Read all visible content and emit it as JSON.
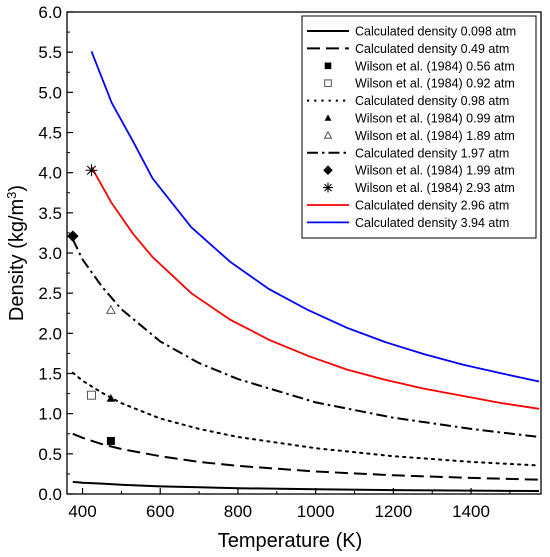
{
  "chart_data": {
    "type": "line",
    "xlabel": "Temperature (K)",
    "ylabel_main": "Density (kg/m",
    "ylabel_sup": "3",
    "ylabel_tail": ")",
    "xlim": [
      360,
      1580
    ],
    "ylim": [
      0,
      6
    ],
    "xticks": [
      400,
      600,
      800,
      1000,
      1200,
      1400
    ],
    "yticks": [
      0.0,
      0.5,
      1.0,
      1.5,
      2.0,
      2.5,
      3.0,
      3.5,
      4.0,
      4.5,
      5.0,
      5.5,
      6.0
    ],
    "ytick_labels": [
      "0.0",
      "0.5",
      "1.0",
      "1.5",
      "2.0",
      "2.5",
      "3.0",
      "3.5",
      "4.0",
      "4.5",
      "5.0",
      "5.5",
      "6.0"
    ],
    "grid": false,
    "legend_position": "top-right",
    "series": [
      {
        "name": "Calculated density 0.098 atm",
        "kind": "line",
        "color": "#000000",
        "dash": "solid",
        "points": [
          [
            375,
            0.15
          ],
          [
            400,
            0.14
          ],
          [
            450,
            0.13
          ],
          [
            500,
            0.115
          ],
          [
            600,
            0.095
          ],
          [
            700,
            0.083
          ],
          [
            800,
            0.072
          ],
          [
            1000,
            0.058
          ],
          [
            1200,
            0.048
          ],
          [
            1400,
            0.042
          ],
          [
            1575,
            0.037
          ]
        ]
      },
      {
        "name": "Calculated density  0.49 atm",
        "kind": "line",
        "color": "#000000",
        "dash": "long-dash",
        "points": [
          [
            375,
            0.75
          ],
          [
            400,
            0.7
          ],
          [
            450,
            0.62
          ],
          [
            500,
            0.56
          ],
          [
            600,
            0.47
          ],
          [
            700,
            0.4
          ],
          [
            800,
            0.35
          ],
          [
            1000,
            0.28
          ],
          [
            1200,
            0.233
          ],
          [
            1400,
            0.2
          ],
          [
            1575,
            0.178
          ]
        ]
      },
      {
        "name": "Wilson et al. (1984) 0.56 atm",
        "kind": "marker",
        "marker": "square-filled",
        "color": "#000000",
        "points": [
          [
            473,
            0.66
          ]
        ]
      },
      {
        "name": "Wilson et al. (1984) 0.92 atm",
        "kind": "marker",
        "marker": "square-open",
        "color": "#000000",
        "points": [
          [
            423,
            1.23
          ]
        ]
      },
      {
        "name": "Calculated density  0.98 atm",
        "kind": "line",
        "color": "#000000",
        "dash": "dot",
        "points": [
          [
            375,
            1.51
          ],
          [
            400,
            1.41
          ],
          [
            450,
            1.26
          ],
          [
            500,
            1.13
          ],
          [
            600,
            0.94
          ],
          [
            700,
            0.81
          ],
          [
            800,
            0.71
          ],
          [
            1000,
            0.57
          ],
          [
            1200,
            0.47
          ],
          [
            1400,
            0.4
          ],
          [
            1575,
            0.355
          ]
        ]
      },
      {
        "name": "Wilson et al. (1984) 0.99 atm",
        "kind": "marker",
        "marker": "triangle-filled",
        "color": "#000000",
        "points": [
          [
            473,
            1.19
          ]
        ]
      },
      {
        "name": "Wilson et al. (1984) 1.89 atm",
        "kind": "marker",
        "marker": "triangle-open",
        "color": "#000000",
        "points": [
          [
            473,
            2.29
          ]
        ]
      },
      {
        "name": "Calculated density  1.97 atm",
        "kind": "line",
        "color": "#000000",
        "dash": "dash-dot",
        "points": [
          [
            375,
            3.17
          ],
          [
            400,
            2.92
          ],
          [
            450,
            2.58
          ],
          [
            500,
            2.3
          ],
          [
            600,
            1.9
          ],
          [
            700,
            1.63
          ],
          [
            800,
            1.43
          ],
          [
            1000,
            1.14
          ],
          [
            1200,
            0.95
          ],
          [
            1400,
            0.81
          ],
          [
            1575,
            0.71
          ]
        ]
      },
      {
        "name": "Wilson et al. (1984) 1.99 atm",
        "kind": "marker",
        "marker": "diamond-filled",
        "color": "#000000",
        "points": [
          [
            375,
            3.21
          ]
        ]
      },
      {
        "name": "Wilson et al. (1984) 2.93 atm",
        "kind": "marker",
        "marker": "asterisk",
        "color": "#000000",
        "points": [
          [
            423,
            4.03
          ]
        ]
      },
      {
        "name": "Calculated density  2.96 atm",
        "kind": "line",
        "color": "#ff0000",
        "dash": "solid",
        "points": [
          [
            423,
            4.07
          ],
          [
            475,
            3.62
          ],
          [
            530,
            3.24
          ],
          [
            580,
            2.95
          ],
          [
            680,
            2.5
          ],
          [
            780,
            2.17
          ],
          [
            880,
            1.92
          ],
          [
            980,
            1.72
          ],
          [
            1080,
            1.55
          ],
          [
            1180,
            1.42
          ],
          [
            1280,
            1.31
          ],
          [
            1380,
            1.22
          ],
          [
            1480,
            1.13
          ],
          [
            1575,
            1.06
          ]
        ]
      },
      {
        "name": "Calculated density  3.94 atm",
        "kind": "line",
        "color": "#0000ff",
        "dash": "solid",
        "points": [
          [
            423,
            5.51
          ],
          [
            475,
            4.87
          ],
          [
            530,
            4.39
          ],
          [
            580,
            3.93
          ],
          [
            680,
            3.32
          ],
          [
            780,
            2.89
          ],
          [
            880,
            2.55
          ],
          [
            980,
            2.29
          ],
          [
            1080,
            2.07
          ],
          [
            1180,
            1.89
          ],
          [
            1280,
            1.74
          ],
          [
            1380,
            1.61
          ],
          [
            1480,
            1.5
          ],
          [
            1575,
            1.4
          ]
        ]
      }
    ]
  }
}
